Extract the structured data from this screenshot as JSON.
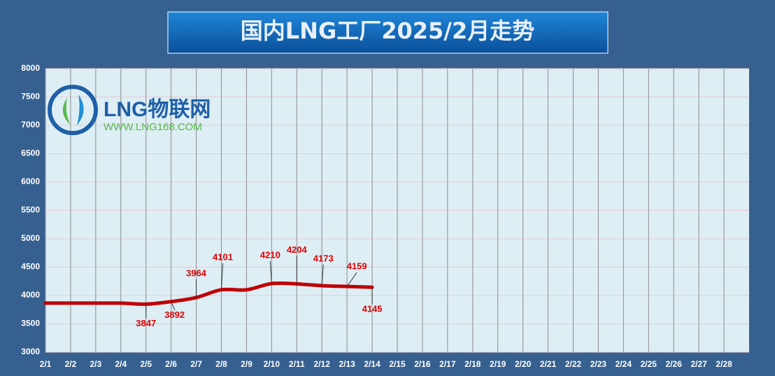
{
  "chart_data": {
    "type": "line",
    "title": "国内LNG工厂2025/2月走势",
    "logo": {
      "name": "LNG物联网",
      "url": "WWW.LNG168.COM"
    },
    "categories": [
      "2/1",
      "2/2",
      "2/3",
      "2/4",
      "2/5",
      "2/6",
      "2/7",
      "2/8",
      "2/9",
      "2/10",
      "2/11",
      "2/12",
      "2/13",
      "2/14",
      "2/15",
      "2/16",
      "2/17",
      "2/18",
      "2/19",
      "2/20",
      "2/21",
      "2/22",
      "2/23",
      "2/24",
      "2/25",
      "2/26",
      "2/27",
      "2/28"
    ],
    "series": [
      {
        "name": "LNG",
        "color": "#c00000",
        "values": [
          3865,
          3865,
          3865,
          3865,
          3847,
          3892,
          3964,
          4101,
          4100,
          4210,
          4204,
          4173,
          4159,
          4145,
          null,
          null,
          null,
          null,
          null,
          null,
          null,
          null,
          null,
          null,
          null,
          null,
          null,
          null
        ],
        "value_labels": [
          null,
          null,
          null,
          null,
          "3847",
          "3892",
          "3964",
          "4101",
          null,
          "4210",
          "4204",
          "4173",
          "4159",
          "4145",
          null,
          null,
          null,
          null,
          null,
          null,
          null,
          null,
          null,
          null,
          null,
          null,
          null,
          null
        ]
      }
    ],
    "ylim": [
      3000,
      8000
    ],
    "yticks": [
      3000,
      3500,
      4000,
      4500,
      5000,
      5500,
      6000,
      6500,
      7000,
      7500,
      8000
    ],
    "grid": true
  }
}
